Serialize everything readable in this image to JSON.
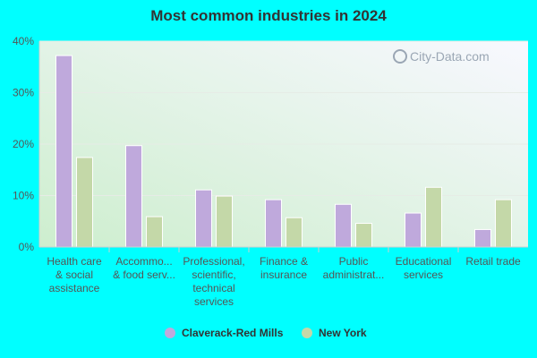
{
  "chart_data": {
    "type": "bar",
    "title": "Most common industries in 2024",
    "categories": [
      [
        "Health care",
        "& social",
        "assistance"
      ],
      [
        "Accommo...",
        "& food serv..."
      ],
      [
        "Professional,",
        "scientific,",
        "technical",
        "services"
      ],
      [
        "Finance &",
        "insurance"
      ],
      [
        "Public",
        "administrat..."
      ],
      [
        "Educational",
        "services"
      ],
      [
        "Retail trade"
      ]
    ],
    "series": [
      {
        "name": "Claverack-Red Mills",
        "values": [
          37.2,
          19.7,
          11.1,
          9.2,
          8.3,
          6.6,
          3.4
        ]
      },
      {
        "name": "New York",
        "values": [
          17.4,
          5.9,
          9.9,
          5.7,
          4.6,
          11.6,
          9.2
        ]
      }
    ],
    "ylim": [
      0,
      40
    ],
    "yticks": [
      "0%",
      "10%",
      "20%",
      "30%",
      "40%"
    ],
    "ytick_values": [
      0,
      10,
      20,
      30,
      40
    ],
    "grid": true,
    "legend_position": "bottom-center",
    "colors": {
      "series": [
        "#bfa9dc",
        "#c4d8a8"
      ],
      "page_background": "#00ffff",
      "plot_gradient_start": "#cdeece",
      "plot_gradient_end": "#f8f8ff"
    }
  },
  "watermark": {
    "text": "City-Data.com"
  }
}
